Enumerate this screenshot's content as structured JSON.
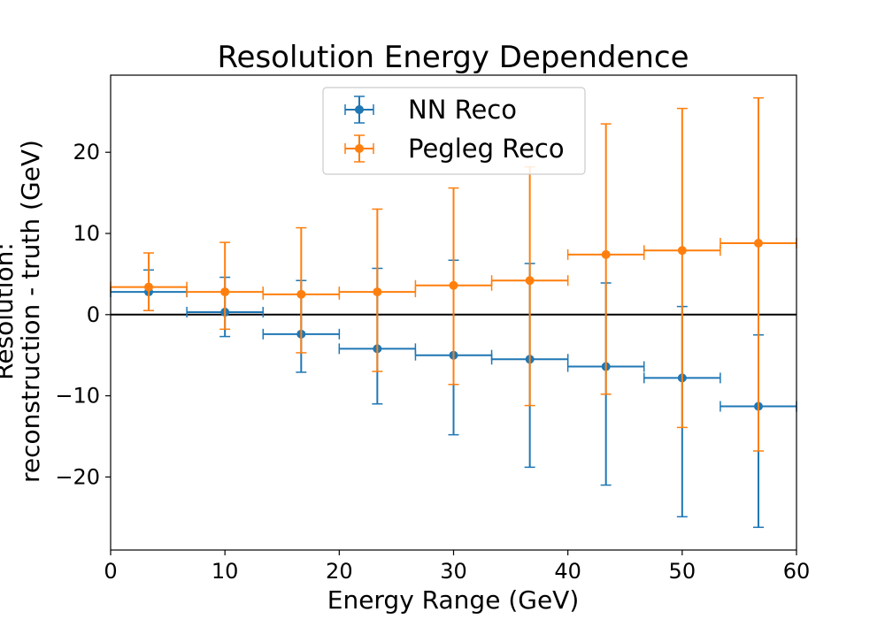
{
  "chart_data": {
    "type": "scatter",
    "title": "Resolution Energy Dependence",
    "xlabel": "Energy Range (GeV)",
    "ylabel_line1": "Resolution:",
    "ylabel_line2": "reconstruction - truth (GeV)",
    "xlim": [
      0,
      60
    ],
    "ylim": [
      -29,
      29.5
    ],
    "xticks": [
      0,
      10,
      20,
      30,
      40,
      50,
      60
    ],
    "xtick_labels": [
      "0",
      "10",
      "20",
      "30",
      "40",
      "50",
      "60"
    ],
    "yticks": [
      -20,
      -10,
      0,
      10,
      20
    ],
    "ytick_labels": [
      "−20",
      "−10",
      "0",
      "10",
      "20"
    ],
    "reference_line_y": 0,
    "grid": false,
    "legend": "upper-center",
    "x_halfwidth": 3.333,
    "series": [
      {
        "name": "NN Reco",
        "color": "#1f77b4",
        "x": [
          3.33,
          10.0,
          16.67,
          23.33,
          30.0,
          36.67,
          43.33,
          50.0,
          56.67
        ],
        "y": [
          2.8,
          0.3,
          -2.4,
          -4.2,
          -5.0,
          -5.5,
          -6.4,
          -7.8,
          -11.3
        ],
        "yerr_low": [
          2.3,
          3.0,
          4.7,
          6.8,
          9.8,
          13.3,
          14.6,
          17.1,
          14.9
        ],
        "yerr_high": [
          2.7,
          4.3,
          6.6,
          9.9,
          11.7,
          11.8,
          10.3,
          8.8,
          8.8
        ]
      },
      {
        "name": "Pegleg Reco",
        "color": "#ff7f0e",
        "x": [
          3.33,
          10.0,
          16.67,
          23.33,
          30.0,
          36.67,
          43.33,
          50.0,
          56.67
        ],
        "y": [
          3.4,
          2.8,
          2.5,
          2.8,
          3.6,
          4.2,
          7.4,
          7.9,
          8.8
        ],
        "yerr_low": [
          2.9,
          4.6,
          7.2,
          9.8,
          12.2,
          15.4,
          17.2,
          21.8,
          25.6
        ],
        "yerr_high": [
          4.2,
          6.1,
          8.2,
          10.2,
          12.0,
          14.0,
          16.1,
          17.5,
          17.9
        ]
      }
    ]
  }
}
